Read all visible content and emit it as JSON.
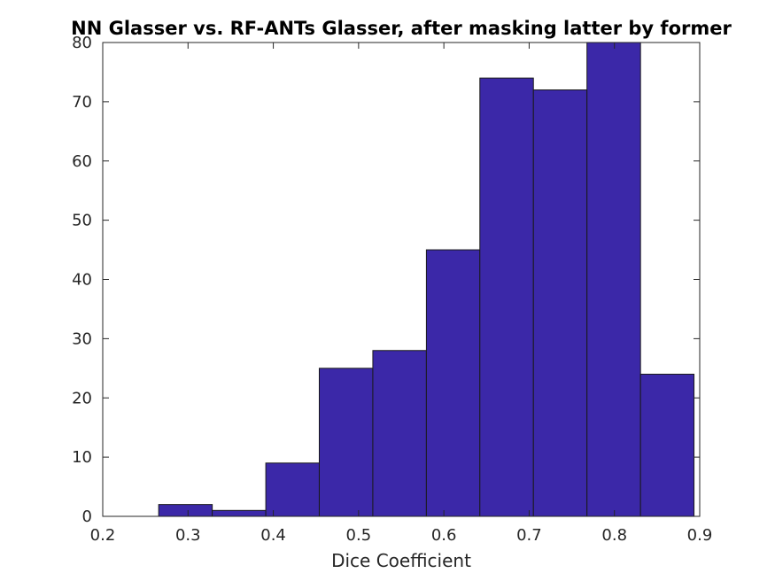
{
  "chart_data": {
    "type": "bar",
    "title": "NN Glasser vs. RF-ANTs Glasser, after masking latter by former",
    "xlabel": "Dice Coefficient",
    "ylabel": "",
    "xlim": [
      0.2,
      0.9
    ],
    "ylim": [
      0,
      80
    ],
    "xticks": [
      "0.2",
      "0.3",
      "0.4",
      "0.5",
      "0.6",
      "0.7",
      "0.8",
      "0.9"
    ],
    "yticks": [
      "0",
      "10",
      "20",
      "30",
      "40",
      "50",
      "60",
      "70",
      "80"
    ],
    "bin_edges": [
      0.2656,
      0.3284,
      0.3912,
      0.4539,
      0.5167,
      0.5795,
      0.6422,
      0.705,
      0.7678,
      0.8306,
      0.8933
    ],
    "values": [
      2,
      1,
      9,
      25,
      28,
      45,
      74,
      72,
      80,
      24
    ],
    "bar_color": "#3b28a8",
    "grid": false,
    "legend": "none"
  }
}
